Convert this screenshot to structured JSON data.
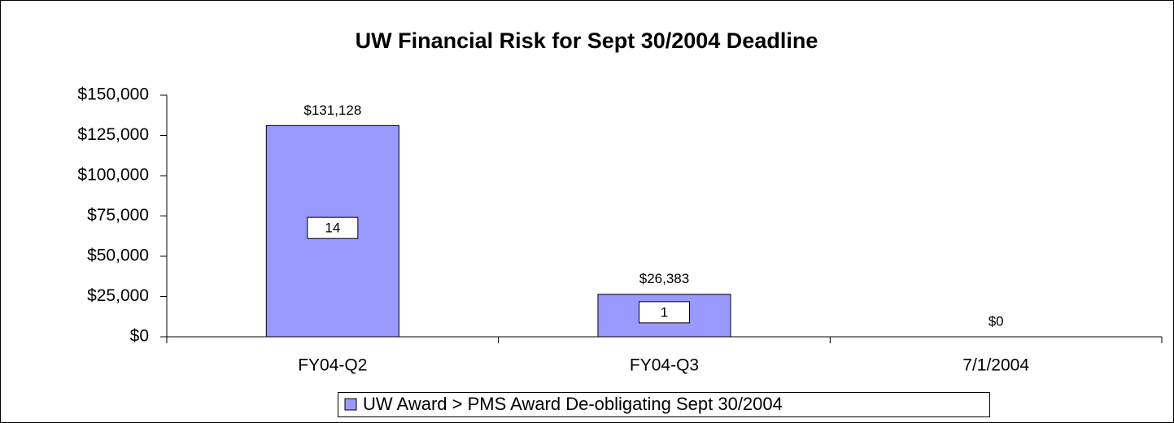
{
  "chart_data": {
    "type": "bar",
    "title": "UW Financial Risk for Sept 30/2004 Deadline",
    "categories": [
      "FY04-Q2",
      "FY04-Q3",
      "7/1/2004"
    ],
    "series": [
      {
        "name": "UW Award > PMS Award De-obligating Sept 30/2004",
        "color": "#9999ff",
        "values": [
          131128,
          26383,
          0
        ],
        "value_labels": [
          "$131,128",
          "$26,383",
          "$0"
        ],
        "counts": [
          14,
          1,
          null
        ]
      }
    ],
    "ylim": [
      0,
      150000
    ],
    "yticks": [
      {
        "value": 0,
        "label": "$0"
      },
      {
        "value": 25000,
        "label": "$25,000"
      },
      {
        "value": 50000,
        "label": "$50,000"
      },
      {
        "value": 75000,
        "label": "$75,000"
      },
      {
        "value": 100000,
        "label": "$100,000"
      },
      {
        "value": 125000,
        "label": "$125,000"
      },
      {
        "value": 150000,
        "label": "$150,000"
      }
    ],
    "grid": false,
    "legend": "bottom"
  }
}
